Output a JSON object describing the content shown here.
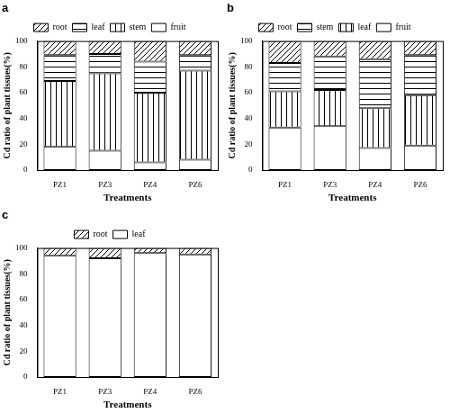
{
  "chart_data": [
    {
      "type": "bar",
      "title": "a",
      "stacked": true,
      "grid": false,
      "legend": "top",
      "x_label": "Treatments",
      "y_label": "Cd ratio of plant tissues(%)",
      "categories": [
        "PZ1",
        "PZ3",
        "PZ4",
        "PZ6"
      ],
      "ylim": [
        0,
        100
      ],
      "yticks": [
        0,
        20,
        40,
        60,
        80,
        100
      ],
      "series": [
        {
          "name": "root",
          "color": "#000000",
          "values": [
            11,
            10,
            16,
            11
          ]
        },
        {
          "name": "leaf",
          "color": "#000000",
          "values": [
            20,
            15,
            24,
            12
          ]
        },
        {
          "name": "stem",
          "color": "#000000",
          "values": [
            51,
            60,
            54,
            69
          ]
        },
        {
          "name": "fruit",
          "color": "#000000",
          "values": [
            18,
            15,
            6,
            8
          ]
        }
      ]
    },
    {
      "type": "bar",
      "title": "b",
      "stacked": true,
      "grid": false,
      "legend": "top",
      "x_label": "Treatments",
      "y_label": "Cd ratio of plant tissues(%)",
      "categories": [
        "PZ1",
        "PZ3",
        "PZ4",
        "PZ6"
      ],
      "ylim": [
        0,
        100
      ],
      "yticks": [
        0,
        20,
        40,
        60,
        80,
        100
      ],
      "series": [
        {
          "name": "root",
          "color": "#000000",
          "values": [
            17,
            12,
            14,
            11
          ]
        },
        {
          "name": "stem",
          "color": "#000000",
          "values": [
            22,
            26,
            38,
            31
          ]
        },
        {
          "name": "leaf",
          "color": "#000000",
          "values": [
            28,
            28,
            31,
            39
          ]
        },
        {
          "name": "fruit",
          "color": "#000000",
          "values": [
            33,
            34,
            17,
            19
          ]
        }
      ]
    },
    {
      "type": "bar",
      "title": "c",
      "stacked": true,
      "grid": false,
      "legend": "top",
      "x_label": "Treatments",
      "y_label": "Cd ratio of plant tissues(%)",
      "categories": [
        "PZ1",
        "PZ3",
        "PZ4",
        "PZ6"
      ],
      "ylim": [
        0,
        100
      ],
      "yticks": [
        0,
        20,
        40,
        60,
        80,
        100
      ],
      "series": [
        {
          "name": "root",
          "color": "#000000",
          "values": [
            6,
            8,
            4,
            5
          ]
        },
        {
          "name": "leaf",
          "color": "#000000",
          "values": [
            94,
            92,
            96,
            95
          ]
        }
      ]
    }
  ]
}
